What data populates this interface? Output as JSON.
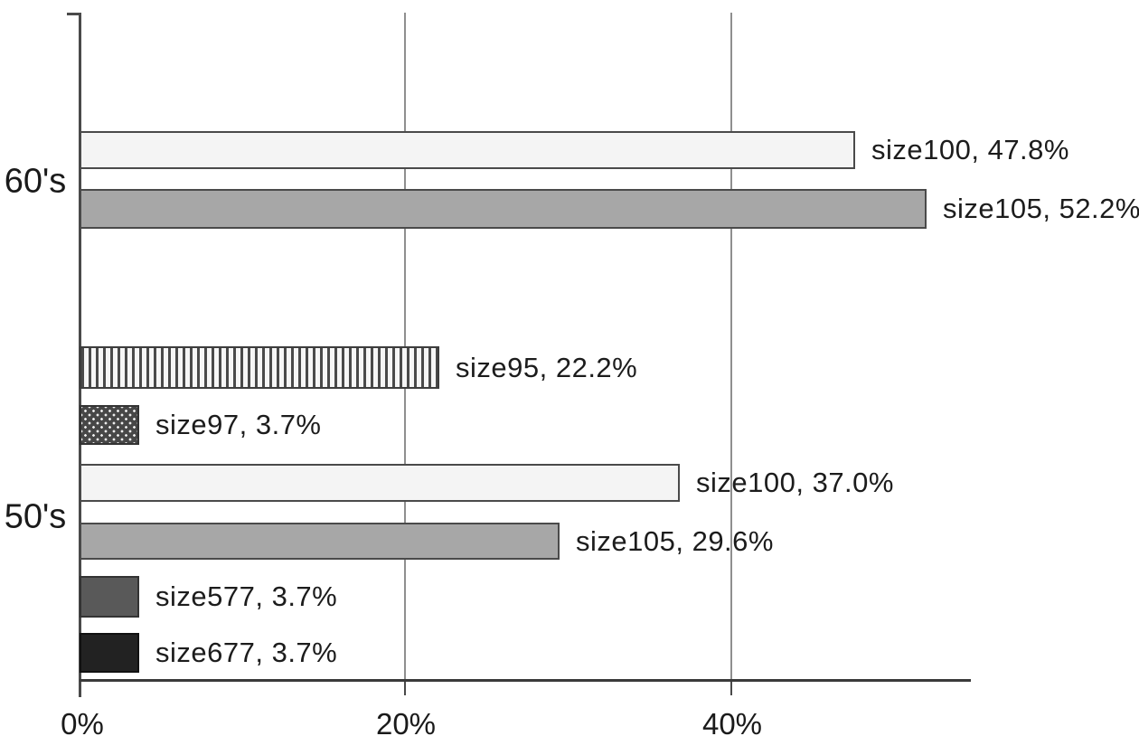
{
  "chart_data": {
    "type": "bar",
    "orientation": "horizontal",
    "title": "",
    "xlabel": "",
    "ylabel": "",
    "x_axis": {
      "ticks": [
        "0%",
        "20%",
        "40%"
      ],
      "tick_values": [
        0,
        20,
        40
      ],
      "min": 0,
      "max": 54.6,
      "gridlines_at": [
        20,
        40
      ]
    },
    "y_axis": {
      "categories": [
        "60's",
        "50's"
      ]
    },
    "legend": "none (labels printed beside bars)",
    "bars": [
      {
        "group": "60's",
        "name": "size100",
        "value": 47.8,
        "label": "size100,  47.8%",
        "fill": "#f4f4f4",
        "pattern": "solid-light"
      },
      {
        "group": "60's",
        "name": "size105",
        "value": 52.2,
        "label": "size105,  52.2%",
        "fill": "#a7a7a7",
        "pattern": "solid-gray"
      },
      {
        "group": "50's",
        "name": "size95",
        "value": 22.2,
        "label": "size95,  22.2%",
        "fill": "#f6f6f6",
        "pattern": "vertical-stripes"
      },
      {
        "group": "50's",
        "name": "size97",
        "value": 3.7,
        "label": "size97,  3.7%",
        "fill": "#474747",
        "pattern": "dots"
      },
      {
        "group": "50's",
        "name": "size100",
        "value": 37.0,
        "label": "size100,  37.0%",
        "fill": "#f4f4f4",
        "pattern": "solid-light"
      },
      {
        "group": "50's",
        "name": "size105",
        "value": 29.6,
        "label": "size105,  29.6%",
        "fill": "#a7a7a7",
        "pattern": "solid-gray"
      },
      {
        "group": "50's",
        "name": "size577",
        "value": 3.7,
        "label": "size577,  3.7%",
        "fill": "#595959",
        "pattern": "solid-darkgray"
      },
      {
        "group": "50's",
        "name": "size677",
        "value": 3.7,
        "label": "size677,  3.7%",
        "fill": "#222222",
        "pattern": "solid-black"
      }
    ],
    "colors": {
      "axis": "#3a3a3a",
      "gridline": "#8f8f8f",
      "text": "#1a1a1a"
    }
  }
}
